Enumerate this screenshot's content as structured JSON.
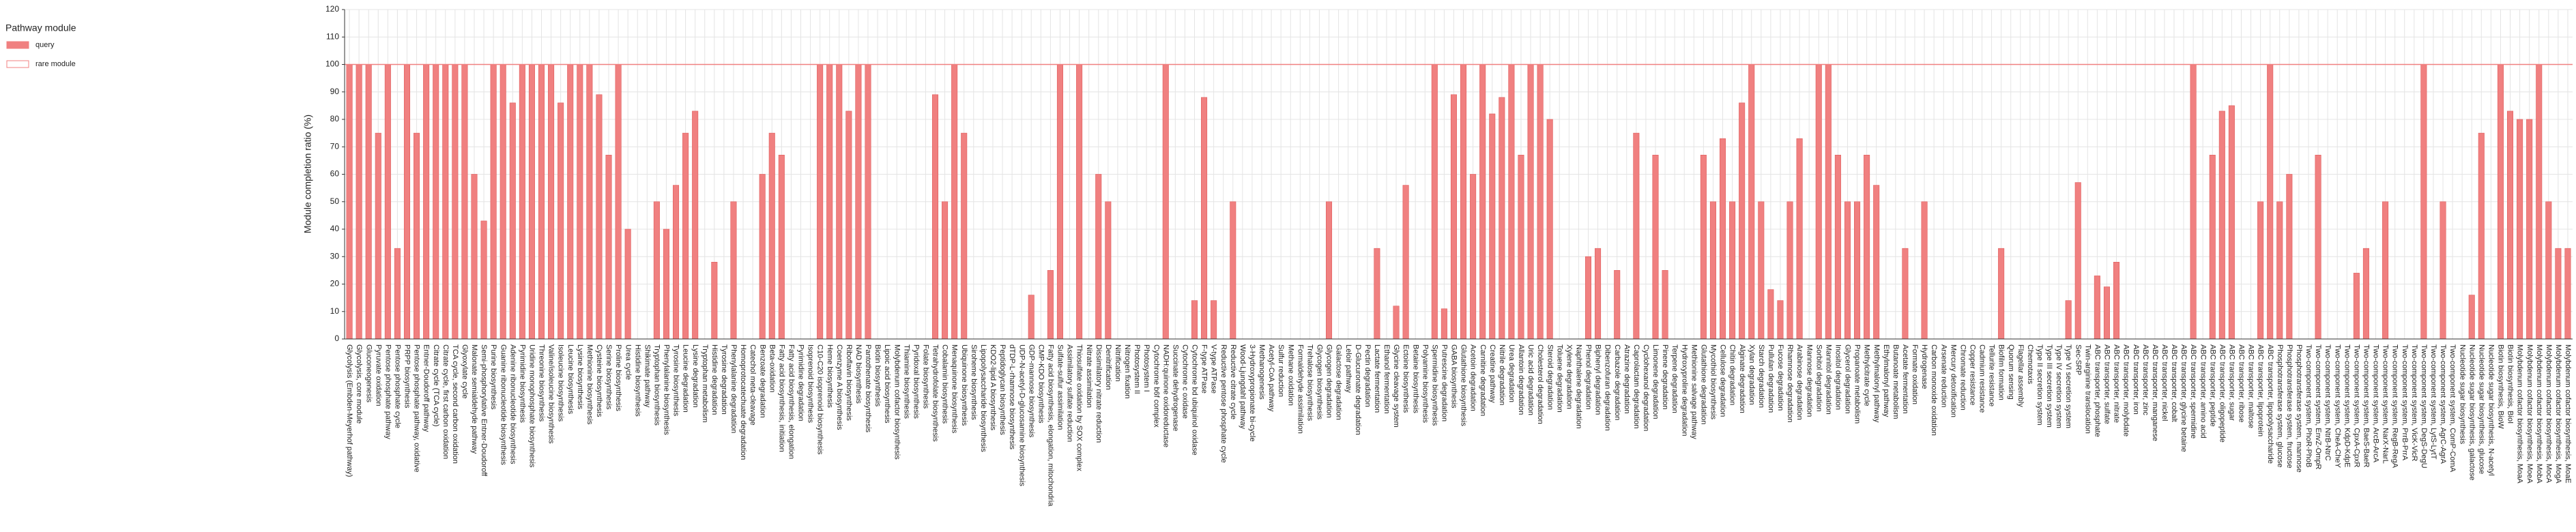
{
  "chart_data": {
    "type": "bar",
    "y_label": "Module completion ratio (%)",
    "legend_title": "Pathway module",
    "legend": [
      {
        "name": "query",
        "color": "#f08080",
        "style": "filled"
      },
      {
        "name": "rare module",
        "color": "#f08080",
        "style": "outline"
      }
    ],
    "color": "#f08080",
    "edge_color": "#e05a5a",
    "reference_line": 100,
    "reference_color": "#f08080",
    "ylim": [
      0,
      120
    ],
    "yticks": [
      0,
      10,
      20,
      30,
      40,
      50,
      60,
      70,
      80,
      90,
      100,
      110,
      120
    ],
    "grid": true,
    "categories": [
      "Glycolysis (Embden-Meyerhof pathway)",
      "Glycolysis, core module",
      "Gluconeogenesis",
      "Pyruvate oxidation",
      "Pentose phosphate pathway",
      "Pentose phosphate cycle",
      "PRPP biosynthesis",
      "Pentose phosphate pathway, oxidative",
      "Entner-Doudoroff pathway",
      "Citrate cycle (TCA cycle)",
      "Citrate cycle, first carbon oxidation",
      "TCA cycle, second carbon oxidation",
      "Glyoxylate cycle",
      "Malonate semialdehyde pathway",
      "Semi-phosphorylative Entner-Doudoroff",
      "Purine biosynthesis",
      "Guanine ribonucleotide biosynthesis",
      "Adenine ribonucleotide biosynthesis",
      "Pyrimidine biosynthesis",
      "Uridine monophosphate biosynthesis",
      "Threonine biosynthesis",
      "Valine/isoleucine biosynthesis",
      "Isoleucine biosynthesis",
      "Leucine biosynthesis",
      "Lysine biosynthesis",
      "Methionine biosynthesis",
      "Cysteine biosynthesis",
      "Serine biosynthesis",
      "Proline biosynthesis",
      "Urea cycle",
      "Histidine biosynthesis",
      "Shikimate pathway",
      "Tryptophan biosynthesis",
      "Phenylalanine biosynthesis",
      "Tyrosine biosynthesis",
      "Leucine degradation",
      "Lysine degradation",
      "Tryptophan metabolism",
      "Histidine degradation",
      "Tyrosine degradation",
      "Phenylalanine degradation",
      "Homoprotocatechuate degradation",
      "Catechol meta-cleavage",
      "Benzoate degradation",
      "Beta-oxidation",
      "Fatty acid biosynthesis, initiation",
      "Fatty acid biosynthesis, elongation",
      "Pyrimidine degradation",
      "Isoprenoid biosynthesis",
      "C10-C20 isoprenoid biosynthesis",
      "Heme biosynthesis",
      "Coenzyme A biosynthesis",
      "Riboflavin biosynthesis",
      "NAD biosynthesis",
      "Pantothenate biosynthesis",
      "Biotin biosynthesis",
      "Lipoic acid biosynthesis",
      "Molybdenum cofactor biosynthesis",
      "Thiamine biosynthesis",
      "Pyridoxal biosynthesis",
      "Folate biosynthesis",
      "Tetrahydrofolate biosynthesis",
      "Cobalamin biosynthesis",
      "Menaquinone biosynthesis",
      "Ubiquinone biosynthesis",
      "Siroheme biosynthesis",
      "Lipopolysaccharide biosynthesis",
      "KDO2-lipid A biosynthesis",
      "Peptidoglycan biosynthesis",
      "dTDP-L-rhamnose biosynthesis",
      "UDP-N-acetyl-D-glucosamine biosynthesis",
      "GDP-mannose biosynthesis",
      "CMP-KDO biosynthesis",
      "Fatty acid biosynthesis, elongation, mitochondria",
      "Sulfate-sulfur assimilation",
      "Assimilatory sulfate reduction",
      "Thiosulfate oxidation by SOX complex",
      "Nitrate assimilation",
      "Dissimilatory nitrate reduction",
      "Denitrification",
      "Nitrification",
      "Nitrogen fixation",
      "Photosystem II",
      "Photosystem I",
      "Cytochrome b6f complex",
      "NADH:quinone oxidoreductase",
      "Succinate dehydrogenase",
      "Cytochrome c oxidase",
      "Cytochrome bd ubiquinol oxidase",
      "F-type ATPase",
      "V-type ATPase",
      "Reductive pentose phosphate cycle",
      "Reductive citrate cycle",
      "Wood-Ljungdahl pathway",
      "3-Hydroxypropionate bi-cycle",
      "Methanogenesis",
      "Acetyl-CoA pathway",
      "Sulfur reduction",
      "Methane oxidation",
      "Formaldehyde assimilation",
      "Trehalose biosynthesis",
      "Glycogen biosynthesis",
      "Glycogen degradation",
      "Galactose degradation",
      "Leloir pathway",
      "D-Glucuronate degradation",
      "Pectin degradation",
      "Lactate fermentation",
      "Ethanol fermentation",
      "Glycine cleavage system",
      "Ectoine biosynthesis",
      "Betaine biosynthesis",
      "Polyamine biosynthesis",
      "Spermidine biosynthesis",
      "Putrescine degradation",
      "GABA biosynthesis",
      "Glutathione biosynthesis",
      "Acetoin degradation",
      "Carnitine degradation",
      "Creatine pathway",
      "Nitrile degradation",
      "Urea degradation",
      "Allantoin degradation",
      "Uric acid degradation",
      "Cholesterol degradation",
      "Steroid degradation",
      "Toluene degradation",
      "Xylene degradation",
      "Naphthalene degradation",
      "Phenol degradation",
      "Biphenyl degradation",
      "Dibenzofuran degradation",
      "Carbazole degradation",
      "Atrazine degradation",
      "Caprolactam degradation",
      "Cyclohexanol degradation",
      "Limonene degradation",
      "Pinene degradation",
      "Terpene degradation",
      "Hydroxyproline degradation",
      "Methionine salvage pathway",
      "Glutathione degradation",
      "Mycothiol biosynthesis",
      "Cellulose degradation",
      "Chitin degradation",
      "Alginate degradation",
      "Xylan degradation",
      "Starch degradation",
      "Pullulan degradation",
      "Fucose degradation",
      "Rhamnose degradation",
      "Arabinose degradation",
      "Mannose degradation",
      "Sorbitol degradation",
      "Mannitol degradation",
      "Inositol degradation",
      "Glycerol degradation",
      "Propanoate metabolism",
      "Methylcitrate cycle",
      "Methylmalonyl pathway",
      "Ethylmalonyl pathway",
      "Butanoate metabolism",
      "Acetate fermentation",
      "Formate oxidation",
      "Hydrogenase",
      "Carbon monoxide oxidation",
      "Arsenate reduction",
      "Mercury detoxification",
      "Chromate reduction",
      "Copper resistance",
      "Cadmium resistance",
      "Tellurite resistance",
      "Biofilm formation",
      "Quorum sensing",
      "Flagellar assembly",
      "Chemotaxis",
      "Type II secretion system",
      "Type III secretion system",
      "Type IV secretion system",
      "Type VI secretion system",
      "Sec-SRP",
      "Twin-arginine translocation",
      "ABC transporter, phosphate",
      "ABC transporter, sulfate",
      "ABC transporter, nitrate",
      "ABC transporter, molybdate",
      "ABC transporter, iron",
      "ABC transporter, zinc",
      "ABC transporter, manganese",
      "ABC transporter, nickel",
      "ABC transporter, cobalt",
      "ABC transporter, glycine betaine",
      "ABC transporter, spermidine",
      "ABC transporter, amino acid",
      "ABC transporter, peptide",
      "ABC transporter, oligopeptide",
      "ABC transporter, sugar",
      "ABC transporter, ribose",
      "ABC transporter, maltose",
      "ABC transporter, lipoprotein",
      "ABC transporter, lipopolysaccharide",
      "Phosphotransferase system, glucose",
      "Phosphotransferase system, fructose",
      "Phosphotransferase system, mannose",
      "Two-component system, PhoR-PhoB",
      "Two-component system, EnvZ-OmpR",
      "Two-component system, NtrB-NtrC",
      "Two-component system, CheA-CheY",
      "Two-component system, KdpD-KdpE",
      "Two-component system, CpxA-CpxR",
      "Two-component system, BaeS-BaeR",
      "Two-component system, ArcB-ArcA",
      "Two-component system, NarX-NarL",
      "Two-component system, RegB-RegA",
      "Two-component system, PrrB-PrrA",
      "Two-component system, VicK-VicR",
      "Two-component system, DegS-DegU",
      "Two-component system, LytS-LytT",
      "Two-component system, AgrC-AgrA",
      "Two-component system, ComP-ComA",
      "Nucleotide sugar biosynthesis",
      "Nucleotide sugar biosynthesis, galactose",
      "Nucleotide sugar biosynthesis, glucose",
      "Nucleotide sugar biosynthesis, N-acetyl",
      "Biotin biosynthesis, BioW",
      "Biotin biosynthesis, BioI",
      "Molybdenum cofactor biosynthesis, MoaA",
      "Molybdenum cofactor biosynthesis, MoeA",
      "Molybdenum cofactor biosynthesis, MobA",
      "Molybdenum cofactor biosynthesis, MocA",
      "Molybdenum cofactor biosynthesis, MogA",
      "Molybdenum cofactor biosynthesis, MoaE"
    ],
    "values": [
      100,
      100,
      100,
      75,
      100,
      33,
      100,
      75,
      100,
      100,
      100,
      100,
      100,
      60,
      43,
      100,
      100,
      86,
      100,
      100,
      100,
      100,
      86,
      100,
      100,
      100,
      89,
      67,
      100,
      40,
      0,
      0,
      50,
      40,
      56,
      75,
      83,
      0,
      28,
      0,
      50,
      0,
      0,
      60,
      75,
      67,
      0,
      0,
      0,
      100,
      100,
      100,
      83,
      100,
      100,
      0,
      0,
      0,
      0,
      0,
      0,
      89,
      50,
      100,
      75,
      0,
      0,
      0,
      0,
      0,
      0,
      16,
      0,
      25,
      100,
      0,
      100,
      0,
      60,
      50,
      0,
      0,
      0,
      0,
      0,
      100,
      0,
      0,
      14,
      88,
      14,
      0,
      50,
      0,
      0,
      0,
      0,
      0,
      0,
      0,
      0,
      0,
      50,
      0,
      0,
      0,
      0,
      33,
      0,
      12,
      56,
      0,
      0,
      100,
      11,
      89,
      100,
      60,
      100,
      82,
      88,
      100,
      67,
      100,
      100,
      80,
      0,
      0,
      0,
      30,
      33,
      0,
      25,
      0,
      75,
      0,
      67,
      25,
      0,
      0,
      0,
      67,
      50,
      73,
      50,
      86,
      100,
      50,
      18,
      14,
      50,
      73,
      0,
      100,
      100,
      67,
      50,
      50,
      67,
      56,
      0,
      0,
      33,
      0,
      50,
      0,
      0,
      0,
      0,
      0,
      0,
      0,
      33,
      0,
      0,
      0,
      0,
      0,
      0,
      14,
      57,
      0,
      23,
      19,
      28,
      0,
      0,
      0,
      0,
      0,
      0,
      0,
      100,
      0,
      67,
      83,
      85,
      0,
      0,
      50,
      100,
      50,
      60,
      0,
      0,
      67,
      0,
      0,
      0,
      24,
      33,
      0,
      50,
      0,
      0,
      0,
      100,
      0,
      50,
      0,
      0,
      16,
      75,
      0,
      100,
      83,
      80,
      80,
      100,
      50,
      33,
      33
    ]
  }
}
